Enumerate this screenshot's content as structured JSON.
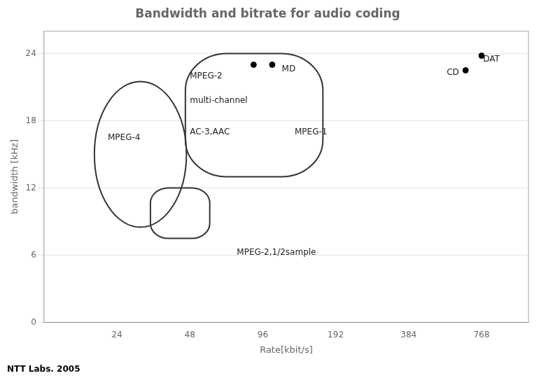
{
  "chart_data": {
    "type": "scatter",
    "title": "Bandwidth and bitrate for audio coding",
    "xlabel": "Rate[kbit/s]",
    "ylabel": "bandwidth [kHz]",
    "log": "x",
    "grid": true,
    "xlim": [
      12,
      1200
    ],
    "xticks": [
      24,
      48,
      96,
      192,
      384,
      768
    ],
    "ylim": [
      0,
      26
    ],
    "yticks": [
      0,
      6,
      12,
      18,
      24
    ],
    "x": [
      88,
      105,
      660,
      768
    ],
    "values": [
      23,
      23,
      22.5,
      23.8
    ],
    "color": "#000000",
    "marker": "circle",
    "regions": [
      {
        "shape": "ellipse",
        "xlim": [
          19.3696,
          46.4645
        ],
        "ylim": [
          8.5,
          21.5
        ]
      },
      {
        "shape": "rounded_rect",
        "xlim": [
          46,
          170
        ],
        "ylim": [
          13,
          24
        ]
      },
      {
        "shape": "rounded_rect",
        "xlim": [
          33,
          58
        ],
        "ylim": [
          7.5,
          12
        ]
      }
    ],
    "annotations": [
      {
        "text": "MPEG-2",
        "x": 48,
        "y": 22
      },
      {
        "text": "multi-channel",
        "x": 48,
        "y": 19.8
      },
      {
        "text": "AC-3,AAC",
        "x": 48,
        "y": 17
      },
      {
        "text": "MPEG-1",
        "x": 130,
        "y": 17
      },
      {
        "text": "MPEG-4",
        "x": 22,
        "y": 16.5
      },
      {
        "text": "MPEG-2,1/2sample",
        "x": 75,
        "y": 6.2
      },
      {
        "text": "MD",
        "x": 115,
        "y": 22.6
      },
      {
        "text": "CD",
        "x": 620,
        "y": 22.3,
        "align": "right"
      },
      {
        "text": "DAT",
        "x": 780,
        "y": 23.5
      }
    ],
    "footer": "NTT Labs. 2005"
  }
}
